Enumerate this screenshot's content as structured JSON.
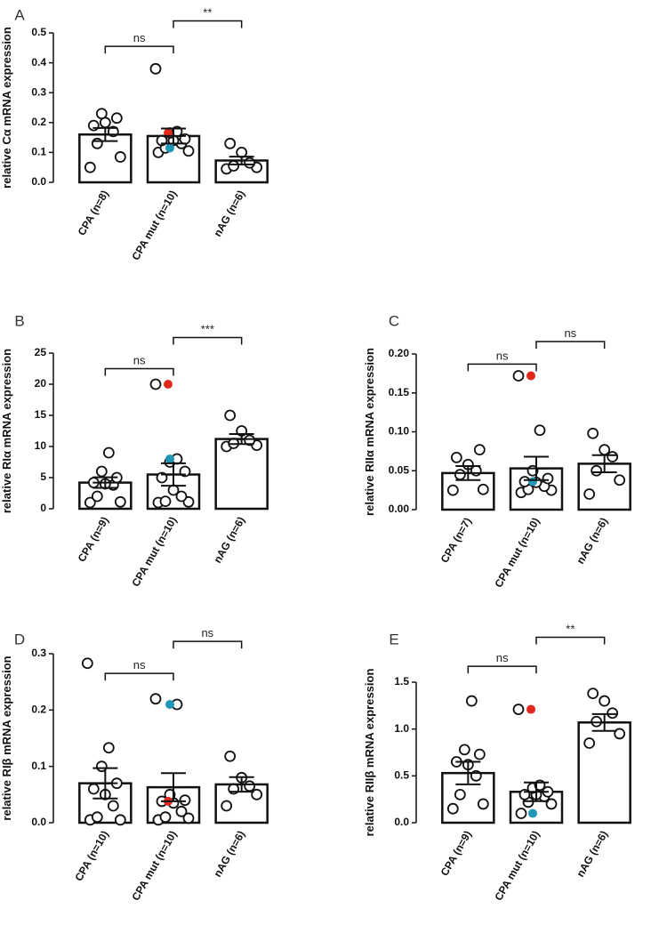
{
  "chart_data": [
    {
      "panel": "A",
      "type": "bar",
      "title": "",
      "ylabel": "relative Cα mRNA expression",
      "xlabel": "",
      "ylim": [
        0,
        0.5
      ],
      "yticks": [
        0.0,
        0.1,
        0.2,
        0.3,
        0.4,
        0.5
      ],
      "ytick_labels": [
        "0.0",
        "0.1",
        "0.2",
        "0.3",
        "0.4",
        "0.5"
      ],
      "categories": [
        "CPA (n=8)",
        "CPA mut (n=10)",
        "nAG (n=6)"
      ],
      "values": [
        0.16,
        0.155,
        0.073
      ],
      "sem": [
        0.022,
        0.025,
        0.013
      ],
      "points": [
        [
          0.05,
          0.085,
          0.13,
          0.17,
          0.2,
          0.19,
          0.215,
          0.23
        ],
        [
          0.1,
          0.105,
          0.115,
          0.13,
          0.14,
          0.14,
          0.145,
          0.165,
          0.17,
          0.38
        ],
        [
          0.045,
          0.05,
          0.055,
          0.065,
          0.1,
          0.13
        ]
      ],
      "highlight_red": {
        "group": 1,
        "value": 0.165
      },
      "highlight_blue": {
        "group": 1,
        "value": 0.115
      },
      "comparisons": [
        {
          "from": 0,
          "to": 1,
          "label": "ns",
          "y": 0.455
        },
        {
          "from": 1,
          "to": 2,
          "label": "**",
          "y": 0.54
        }
      ]
    },
    {
      "panel": "B",
      "type": "bar",
      "title": "",
      "ylabel": "relative RIα mRNA expression",
      "xlabel": "",
      "ylim": [
        0,
        25
      ],
      "yticks": [
        0,
        5,
        10,
        15,
        20,
        25
      ],
      "ytick_labels": [
        "0",
        "5",
        "10",
        "15",
        "20",
        "25"
      ],
      "categories": [
        "CPA (n=9)",
        "CPA mut (n=10)",
        "nAG (n=6)"
      ],
      "values": [
        4.2,
        5.5,
        11.2
      ],
      "sem": [
        0.85,
        1.8,
        0.8
      ],
      "points": [
        [
          1.0,
          1.1,
          2.0,
          3.8,
          4.0,
          4.2,
          5.0,
          6.0,
          9.0
        ],
        [
          1.0,
          1.1,
          1.2,
          2.0,
          3.0,
          5.0,
          6.0,
          7.5,
          8.0,
          20.0
        ],
        [
          10.0,
          10.2,
          10.5,
          11.0,
          12.5,
          15.0
        ]
      ],
      "highlight_red": {
        "group": 1,
        "value": 20.0
      },
      "highlight_blue": {
        "group": 1,
        "value": 8.0
      },
      "comparisons": [
        {
          "from": 0,
          "to": 1,
          "label": "ns",
          "y": 22.5
        },
        {
          "from": 1,
          "to": 2,
          "label": "***",
          "y": 27.5
        }
      ]
    },
    {
      "panel": "C",
      "type": "bar",
      "title": "",
      "ylabel": "relative RIIα mRNA expression",
      "xlabel": "",
      "ylim": [
        0,
        0.2
      ],
      "yticks": [
        0.0,
        0.05,
        0.1,
        0.15,
        0.2
      ],
      "ytick_labels": [
        "0.00",
        "0.05",
        "0.10",
        "0.15",
        "0.20"
      ],
      "categories": [
        "CPA (n=7)",
        "CPA mut (n=10)",
        "nAG (n=6)"
      ],
      "values": [
        0.047,
        0.053,
        0.059
      ],
      "sem": [
        0.009,
        0.015,
        0.011
      ],
      "points": [
        [
          0.025,
          0.026,
          0.045,
          0.05,
          0.058,
          0.067,
          0.077
        ],
        [
          0.022,
          0.025,
          0.026,
          0.03,
          0.035,
          0.036,
          0.04,
          0.05,
          0.102,
          0.172
        ],
        [
          0.02,
          0.038,
          0.05,
          0.068,
          0.077,
          0.098
        ]
      ],
      "highlight_red": {
        "group": 1,
        "value": 0.172
      },
      "highlight_blue": {
        "group": 1,
        "value": 0.036
      },
      "comparisons": [
        {
          "from": 0,
          "to": 1,
          "label": "ns",
          "y": 0.187
        },
        {
          "from": 1,
          "to": 2,
          "label": "ns",
          "y": 0.216
        }
      ]
    },
    {
      "panel": "D",
      "type": "bar",
      "title": "",
      "ylabel": "relative RIβ mRNA expression",
      "xlabel": "",
      "ylim": [
        0,
        0.3
      ],
      "yticks": [
        0.0,
        0.1,
        0.2,
        0.3
      ],
      "ytick_labels": [
        "0.0",
        "0.1",
        "0.2",
        "0.3"
      ],
      "categories": [
        "CPA (n=10)",
        "CPA mut (n=10)",
        "nAG (n=6)"
      ],
      "values": [
        0.07,
        0.063,
        0.068
      ],
      "sem": [
        0.027,
        0.025,
        0.013
      ],
      "points": [
        [
          0.005,
          0.005,
          0.01,
          0.03,
          0.05,
          0.06,
          0.07,
          0.1,
          0.133,
          0.283
        ],
        [
          0.005,
          0.008,
          0.01,
          0.02,
          0.035,
          0.038,
          0.04,
          0.05,
          0.21,
          0.22
        ],
        [
          0.03,
          0.05,
          0.06,
          0.065,
          0.08,
          0.118
        ]
      ],
      "highlight_red": {
        "group": 1,
        "value": 0.038
      },
      "highlight_blue": {
        "group": 1,
        "value": 0.21
      },
      "comparisons": [
        {
          "from": 0,
          "to": 1,
          "label": "ns",
          "y": 0.265
        },
        {
          "from": 1,
          "to": 2,
          "label": "ns",
          "y": 0.322
        }
      ]
    },
    {
      "panel": "E",
      "type": "bar",
      "title": "",
      "ylabel": "relative RIIβ mRNA expression",
      "xlabel": "",
      "ylim": [
        0,
        1.5
      ],
      "yticks": [
        0.0,
        0.5,
        1.0,
        1.5
      ],
      "ytick_labels": [
        "0.0",
        "0.5",
        "1.0",
        "1.5"
      ],
      "categories": [
        "CPA (n=9)",
        "CPA mut (n=10)",
        "nAG (n=6)"
      ],
      "values": [
        0.53,
        0.33,
        1.07
      ],
      "sem": [
        0.12,
        0.1,
        0.09
      ],
      "points": [
        [
          0.15,
          0.2,
          0.3,
          0.5,
          0.62,
          0.65,
          0.73,
          0.78,
          1.3
        ],
        [
          0.1,
          0.2,
          0.22,
          0.28,
          0.3,
          0.3,
          0.33,
          0.37,
          0.4,
          1.21
        ],
        [
          0.85,
          0.95,
          1.08,
          1.17,
          1.3,
          1.38
        ]
      ],
      "highlight_red": {
        "group": 1,
        "value": 1.21
      },
      "highlight_blue": {
        "group": 1,
        "value": 0.1
      },
      "comparisons": [
        {
          "from": 0,
          "to": 1,
          "label": "ns",
          "y": 1.67
        },
        {
          "from": 1,
          "to": 2,
          "label": "**",
          "y": 1.98
        }
      ]
    }
  ],
  "colors": {
    "bar_fill": "#ffffff",
    "stroke": "#111111",
    "point_fill": "#ffffff",
    "highlight_red": "#e0281f",
    "highlight_blue": "#1f97b5"
  }
}
